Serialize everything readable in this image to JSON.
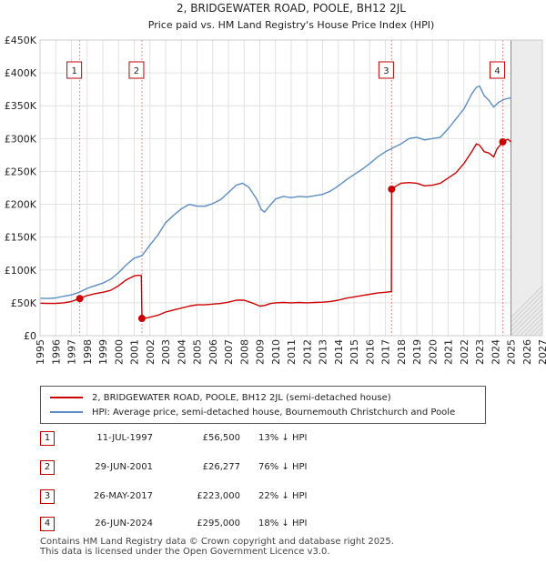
{
  "chart_data": {
    "type": "line",
    "title": "2, BRIDGEWATER ROAD, POOLE, BH12 2JL",
    "subtitle": "Price paid vs. HM Land Registry's House Price Index (HPI)",
    "xlabel": "",
    "ylabel": "",
    "xlim": [
      1995,
      2027
    ],
    "ylim": [
      0,
      450000
    ],
    "x_ticks": [
      "1995",
      "1996",
      "1997",
      "1998",
      "1999",
      "2000",
      "2001",
      "2002",
      "2003",
      "2004",
      "2005",
      "2006",
      "2007",
      "2008",
      "2009",
      "2010",
      "2011",
      "2012",
      "2013",
      "2014",
      "2015",
      "2016",
      "2017",
      "2018",
      "2019",
      "2020",
      "2021",
      "2022",
      "2023",
      "2024",
      "2025",
      "2026",
      "2027"
    ],
    "y_ticks": [
      {
        "value": 0,
        "label": "£0"
      },
      {
        "value": 50000,
        "label": "£50K"
      },
      {
        "value": 100000,
        "label": "£100K"
      },
      {
        "value": 150000,
        "label": "£150K"
      },
      {
        "value": 200000,
        "label": "£200K"
      },
      {
        "value": 250000,
        "label": "£250K"
      },
      {
        "value": 300000,
        "label": "£300K"
      },
      {
        "value": 350000,
        "label": "£350K"
      },
      {
        "value": 400000,
        "label": "£400K"
      },
      {
        "value": 450000,
        "label": "£450K"
      }
    ],
    "grid": true,
    "future_region_start": 2025.0,
    "series": [
      {
        "name": "2, BRIDGEWATER ROAD, POOLE, BH12 2JL (semi-detached house)",
        "color": "#cc0000",
        "points": [
          [
            1995.0,
            49500
          ],
          [
            1995.5,
            49000
          ],
          [
            1996.0,
            49200
          ],
          [
            1996.5,
            50000
          ],
          [
            1997.0,
            52000
          ],
          [
            1997.53,
            56500
          ],
          [
            1998.0,
            61000
          ],
          [
            1998.5,
            64000
          ],
          [
            1999.0,
            66000
          ],
          [
            1999.5,
            69000
          ],
          [
            2000.0,
            76000
          ],
          [
            2000.5,
            85000
          ],
          [
            2001.0,
            91000
          ],
          [
            2001.3,
            92000
          ],
          [
            2001.45,
            91500
          ],
          [
            2001.49,
            26277
          ],
          [
            2001.8,
            27000
          ],
          [
            2002.5,
            31000
          ],
          [
            2003.0,
            36000
          ],
          [
            2003.5,
            39000
          ],
          [
            2004.0,
            42000
          ],
          [
            2004.5,
            45000
          ],
          [
            2005.0,
            47000
          ],
          [
            2005.5,
            47000
          ],
          [
            2006.0,
            48000
          ],
          [
            2006.5,
            49000
          ],
          [
            2007.0,
            51000
          ],
          [
            2007.5,
            54000
          ],
          [
            2008.0,
            54000
          ],
          [
            2008.5,
            50000
          ],
          [
            2009.0,
            45000
          ],
          [
            2009.3,
            46000
          ],
          [
            2009.7,
            49000
          ],
          [
            2010.0,
            50000
          ],
          [
            2010.5,
            50500
          ],
          [
            2011.0,
            50000
          ],
          [
            2011.5,
            50500
          ],
          [
            2012.0,
            50000
          ],
          [
            2012.5,
            50500
          ],
          [
            2013.0,
            51000
          ],
          [
            2013.5,
            52000
          ],
          [
            2014.0,
            54000
          ],
          [
            2014.5,
            57000
          ],
          [
            2015.0,
            59000
          ],
          [
            2015.5,
            61000
          ],
          [
            2016.0,
            63000
          ],
          [
            2016.5,
            65000
          ],
          [
            2017.0,
            66000
          ],
          [
            2017.38,
            67000
          ],
          [
            2017.4,
            223000
          ],
          [
            2017.7,
            228000
          ],
          [
            2018.0,
            232000
          ],
          [
            2018.5,
            233000
          ],
          [
            2019.0,
            232000
          ],
          [
            2019.5,
            228000
          ],
          [
            2020.0,
            229000
          ],
          [
            2020.5,
            232000
          ],
          [
            2021.0,
            240000
          ],
          [
            2021.5,
            248000
          ],
          [
            2022.0,
            262000
          ],
          [
            2022.5,
            280000
          ],
          [
            2022.8,
            292000
          ],
          [
            2023.0,
            290000
          ],
          [
            2023.3,
            280000
          ],
          [
            2023.6,
            278000
          ],
          [
            2023.9,
            272000
          ],
          [
            2024.1,
            284000
          ],
          [
            2024.48,
            295000
          ],
          [
            2024.8,
            299000
          ],
          [
            2025.0,
            295000
          ]
        ]
      },
      {
        "name": "HPI: Average price, semi-detached house, Bournemouth Christchurch and Poole",
        "color": "#5b8dc4",
        "points": [
          [
            1995.0,
            57000
          ],
          [
            1995.5,
            56500
          ],
          [
            1996.0,
            57500
          ],
          [
            1996.5,
            60000
          ],
          [
            1997.0,
            62000
          ],
          [
            1997.5,
            66000
          ],
          [
            1998.0,
            72000
          ],
          [
            1998.5,
            76000
          ],
          [
            1999.0,
            80000
          ],
          [
            1999.5,
            86000
          ],
          [
            2000.0,
            96000
          ],
          [
            2000.5,
            108000
          ],
          [
            2001.0,
            118000
          ],
          [
            2001.5,
            122000
          ],
          [
            2002.0,
            138000
          ],
          [
            2002.5,
            153000
          ],
          [
            2003.0,
            172000
          ],
          [
            2003.5,
            183000
          ],
          [
            2004.0,
            193000
          ],
          [
            2004.5,
            200000
          ],
          [
            2005.0,
            197000
          ],
          [
            2005.5,
            197000
          ],
          [
            2006.0,
            201000
          ],
          [
            2006.5,
            207000
          ],
          [
            2007.0,
            218000
          ],
          [
            2007.5,
            229000
          ],
          [
            2007.9,
            232000
          ],
          [
            2008.3,
            226000
          ],
          [
            2008.8,
            208000
          ],
          [
            2009.1,
            192000
          ],
          [
            2009.3,
            188000
          ],
          [
            2009.7,
            200000
          ],
          [
            2010.0,
            208000
          ],
          [
            2010.5,
            212000
          ],
          [
            2011.0,
            210000
          ],
          [
            2011.5,
            212000
          ],
          [
            2012.0,
            211000
          ],
          [
            2012.5,
            213000
          ],
          [
            2013.0,
            215000
          ],
          [
            2013.5,
            220000
          ],
          [
            2014.0,
            228000
          ],
          [
            2014.5,
            237000
          ],
          [
            2015.0,
            245000
          ],
          [
            2015.5,
            253000
          ],
          [
            2016.0,
            262000
          ],
          [
            2016.5,
            272000
          ],
          [
            2017.0,
            280000
          ],
          [
            2017.5,
            286000
          ],
          [
            2018.0,
            292000
          ],
          [
            2018.5,
            300000
          ],
          [
            2019.0,
            302000
          ],
          [
            2019.5,
            298000
          ],
          [
            2020.0,
            300000
          ],
          [
            2020.5,
            302000
          ],
          [
            2021.0,
            315000
          ],
          [
            2021.5,
            330000
          ],
          [
            2022.0,
            345000
          ],
          [
            2022.5,
            368000
          ],
          [
            2022.8,
            378000
          ],
          [
            2023.0,
            380000
          ],
          [
            2023.3,
            365000
          ],
          [
            2023.6,
            358000
          ],
          [
            2023.9,
            348000
          ],
          [
            2024.2,
            355000
          ],
          [
            2024.6,
            360000
          ],
          [
            2025.0,
            362000
          ]
        ]
      }
    ],
    "transactions": [
      {
        "label": "1",
        "year": 1997.53,
        "price": 56500
      },
      {
        "label": "2",
        "year": 2001.49,
        "price": 26277
      },
      {
        "label": "3",
        "year": 2017.4,
        "price": 223000
      },
      {
        "label": "4",
        "year": 2024.48,
        "price": 295000
      }
    ]
  },
  "legend": {
    "property_label": "2, BRIDGEWATER ROAD, POOLE, BH12 2JL (semi-detached house)",
    "hpi_label": "HPI: Average price, semi-detached house, Bournemouth Christchurch and Poole",
    "property_color": "#cc0000",
    "hpi_color": "#5b8dc4"
  },
  "table": [
    {
      "num": "1",
      "date": "11-JUL-1997",
      "price": "£56,500",
      "hpi": "13% ↓ HPI"
    },
    {
      "num": "2",
      "date": "29-JUN-2001",
      "price": "£26,277",
      "hpi": "76% ↓ HPI"
    },
    {
      "num": "3",
      "date": "26-MAY-2017",
      "price": "£223,000",
      "hpi": "22% ↓ HPI"
    },
    {
      "num": "4",
      "date": "26-JUN-2024",
      "price": "£295,000",
      "hpi": "18% ↓ HPI"
    }
  ],
  "footer": {
    "line1": "Contains HM Land Registry data © Crown copyright and database right 2025.",
    "line2": "This data is licensed under the Open Government Licence v3.0."
  }
}
